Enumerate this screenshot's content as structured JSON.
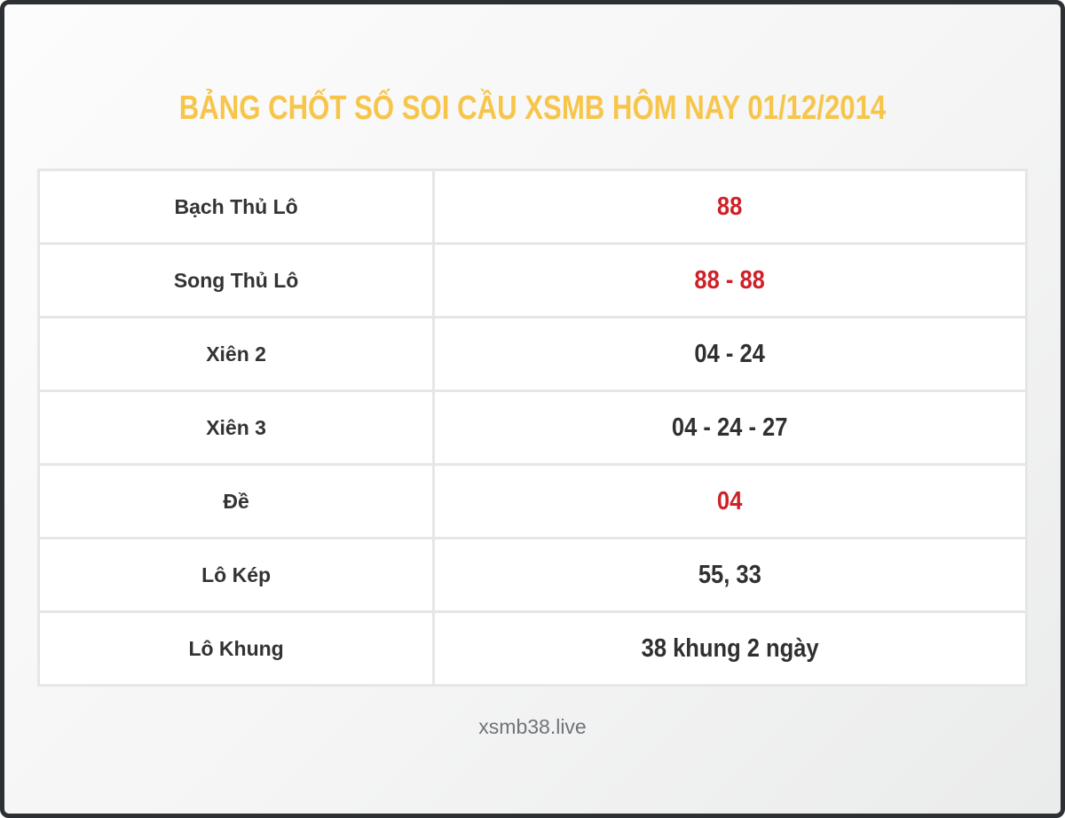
{
  "page": {
    "title": "BẢNG CHỐT SỐ SOI CẦU XSMB HÔM NAY 01/12/2014",
    "footer": "xsmb38.live"
  },
  "colors": {
    "title_gold": "#f6c54a",
    "highlight_red": "#cf2127",
    "text_dark": "#303030",
    "table_border": "#e6e6e6",
    "frame_border": "#2c2f33"
  },
  "table": {
    "rows": [
      {
        "label": "Bạch Thủ Lô",
        "value": "88",
        "value_color": "red"
      },
      {
        "label": "Song Thủ Lô",
        "value": "88 - 88",
        "value_color": "red"
      },
      {
        "label": "Xiên 2",
        "value": "04 - 24",
        "value_color": "dark"
      },
      {
        "label": "Xiên 3",
        "value": "04 - 24 - 27",
        "value_color": "dark"
      },
      {
        "label": "Đề",
        "value": "04",
        "value_color": "red"
      },
      {
        "label": "Lô Kép",
        "value": "55, 33",
        "value_color": "dark"
      },
      {
        "label": "Lô Khung",
        "value": "38 khung 2 ngày",
        "value_color": "dark"
      }
    ]
  }
}
